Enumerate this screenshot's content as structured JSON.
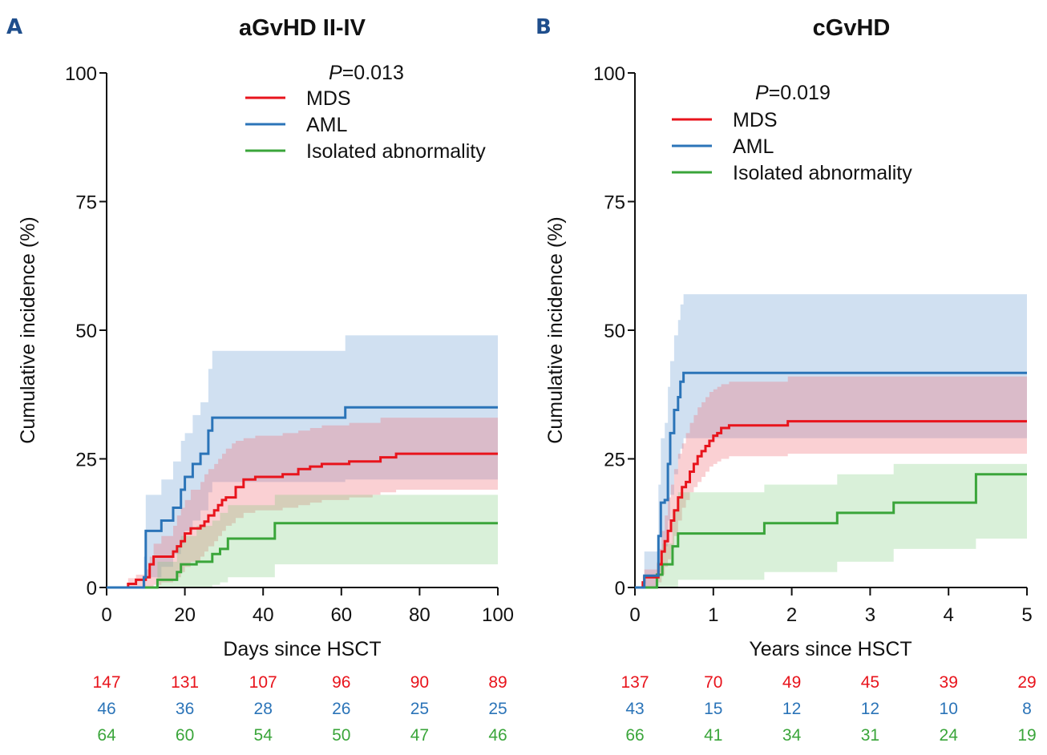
{
  "figure": {
    "colors": {
      "MDS": "#e8141c",
      "AML": "#2b74b8",
      "Isolated abnormality": "#3aa53a",
      "axis": "#111111",
      "panel_letter": "#1f4e8c"
    }
  },
  "chart_data": [
    {
      "type": "line",
      "subtype": "cumulative-incidence-step",
      "panel_letter": "A",
      "title": "aGvHD II-IV",
      "p_value_label": "P",
      "p_value_text": "=0.013",
      "xlabel": "Days since HSCT",
      "ylabel": "Cumulative incidence (%)",
      "xlim": [
        0,
        100
      ],
      "ylim": [
        0,
        100
      ],
      "xticks": [
        0,
        20,
        40,
        60,
        80,
        100
      ],
      "yticks": [
        0,
        25,
        50,
        75,
        100
      ],
      "grid": false,
      "legend_position": "top-center",
      "legend": [
        "MDS",
        "AML",
        "Isolated abnormality"
      ],
      "series": [
        {
          "name": "MDS",
          "x": [
            0,
            5.5,
            7.5,
            10,
            11,
            12,
            14,
            17,
            18,
            19,
            20,
            21.5,
            24,
            25,
            26,
            27.5,
            28.5,
            29.5,
            30.5,
            32,
            33,
            35,
            38,
            45,
            49,
            52,
            55,
            62,
            68,
            70,
            74,
            100
          ],
          "y": [
            0,
            0.7,
            1.5,
            2.0,
            4.5,
            6.0,
            6.0,
            7.0,
            8.0,
            9.0,
            10.5,
            11.5,
            12.0,
            12.8,
            14.0,
            15.0,
            16.0,
            17.0,
            17.5,
            17.5,
            19.5,
            21.0,
            21.5,
            22.0,
            23.0,
            23.5,
            24.0,
            24.5,
            24.5,
            25.3,
            26.0,
            26.0
          ],
          "ci_upper": [
            0,
            1.8,
            2.5,
            3.5,
            6.0,
            8.5,
            10.0,
            12.0,
            14.0,
            15.5,
            17.0,
            19.0,
            20.5,
            22.0,
            23.0,
            24.0,
            25.0,
            26.0,
            27.0,
            28.0,
            28.5,
            29.0,
            29.5,
            30.0,
            30.5,
            31.0,
            31.5,
            32.0,
            32.0,
            33.0,
            33.0,
            33.0
          ],
          "ci_lower": [
            0,
            0,
            0,
            0,
            0,
            0.5,
            1.0,
            1.5,
            2.0,
            3.0,
            4.0,
            5.0,
            6.0,
            7.0,
            8.0,
            9.0,
            10.0,
            11.0,
            12.0,
            12.5,
            13.5,
            14.5,
            15.0,
            15.5,
            16.0,
            16.5,
            17.0,
            17.5,
            18.0,
            18.5,
            19.0,
            19.0
          ]
        },
        {
          "name": "AML",
          "x": [
            0,
            9.5,
            10,
            14,
            17,
            19,
            20,
            22,
            24,
            26,
            27,
            61,
            100
          ],
          "y": [
            0,
            2.0,
            11.0,
            13.0,
            15.5,
            19.0,
            21.5,
            24.0,
            26.0,
            30.5,
            33.0,
            35.0,
            35.0
          ],
          "ci_upper": [
            0,
            6.0,
            18.0,
            21.0,
            24.5,
            28.5,
            30.0,
            33.5,
            36.0,
            42.5,
            46.0,
            49.0,
            49.0
          ],
          "ci_lower": [
            0,
            0,
            2.0,
            4.0,
            6.5,
            8.5,
            11.0,
            13.0,
            15.0,
            18.5,
            20.5,
            21.0,
            21.0
          ]
        },
        {
          "name": "Isolated abnormality",
          "x": [
            0,
            13,
            18,
            19,
            23,
            27,
            29,
            31,
            43,
            100
          ],
          "y": [
            0,
            1.5,
            3.0,
            4.5,
            5.0,
            6.5,
            7.5,
            9.5,
            12.5,
            12.5
          ],
          "ci_upper": [
            0,
            5.0,
            8.0,
            10.0,
            12.0,
            13.0,
            14.5,
            16.0,
            18.0,
            19.0
          ],
          "ci_lower": [
            0,
            0,
            0,
            0,
            0,
            0.5,
            1.0,
            2.0,
            4.5,
            4.5
          ]
        }
      ],
      "risk_table": {
        "MDS": [
          147,
          131,
          107,
          96,
          90,
          89
        ],
        "AML": [
          46,
          36,
          28,
          26,
          25,
          25
        ],
        "Isolated abnormality": [
          64,
          60,
          54,
          50,
          47,
          46
        ]
      }
    },
    {
      "type": "line",
      "subtype": "cumulative-incidence-step",
      "panel_letter": "B",
      "title": "cGvHD",
      "p_value_label": "P",
      "p_value_text": "=0.019",
      "xlabel": "Years since HSCT",
      "ylabel": "Cumulative incidence (%)",
      "xlim": [
        0,
        5
      ],
      "ylim": [
        0,
        100
      ],
      "xticks": [
        0,
        1,
        2,
        3,
        4,
        5
      ],
      "yticks": [
        0,
        25,
        50,
        75,
        100
      ],
      "grid": false,
      "legend_position": "top-center",
      "legend": [
        "MDS",
        "AML",
        "Isolated abnormality"
      ],
      "series": [
        {
          "name": "MDS",
          "x": [
            0,
            0.1,
            0.12,
            0.3,
            0.34,
            0.38,
            0.42,
            0.46,
            0.5,
            0.55,
            0.6,
            0.65,
            0.7,
            0.75,
            0.8,
            0.85,
            0.9,
            0.95,
            1.0,
            1.05,
            1.1,
            1.2,
            1.95,
            5
          ],
          "y": [
            0,
            1.0,
            2.0,
            4.5,
            7.0,
            9.0,
            11.0,
            13.0,
            15.0,
            17.5,
            19.5,
            20.5,
            22.5,
            24.0,
            25.5,
            26.5,
            27.5,
            28.5,
            29.5,
            30.0,
            31.0,
            31.5,
            32.3,
            32.3
          ],
          "ci_upper": [
            0,
            2.5,
            3.5,
            7.5,
            11.0,
            14.0,
            17.5,
            20.0,
            23.0,
            26.0,
            28.0,
            30.0,
            32.0,
            33.5,
            35.0,
            36.0,
            37.0,
            38.0,
            38.5,
            39.0,
            39.5,
            40.0,
            41.0,
            41.0
          ],
          "ci_lower": [
            0,
            0,
            0,
            1.0,
            2.5,
            4.0,
            5.5,
            7.5,
            10.0,
            13.0,
            15.5,
            17.0,
            18.5,
            19.5,
            20.5,
            21.5,
            22.5,
            23.5,
            24.0,
            24.5,
            25.0,
            25.5,
            26.0,
            26.0
          ]
        },
        {
          "name": "AML",
          "x": [
            0,
            0.12,
            0.25,
            0.3,
            0.33,
            0.38,
            0.42,
            0.45,
            0.5,
            0.55,
            0.58,
            0.62,
            5
          ],
          "y": [
            0,
            2.3,
            2.3,
            10.0,
            16.5,
            17.0,
            24.0,
            30.0,
            34.5,
            37.0,
            40.0,
            41.7,
            41.7
          ],
          "ci_upper": [
            0,
            7.0,
            7.0,
            20.0,
            29.0,
            32.0,
            39.0,
            44.0,
            49.0,
            52.0,
            55.0,
            57.0,
            57.0
          ],
          "ci_lower": [
            0,
            0,
            0,
            3.0,
            7.0,
            8.0,
            13.0,
            18.0,
            22.0,
            25.0,
            27.0,
            29.0,
            29.0
          ]
        },
        {
          "name": "Isolated abnormality",
          "x": [
            0,
            0.28,
            0.35,
            0.48,
            0.55,
            1.65,
            2.58,
            3.3,
            4.35,
            5
          ],
          "y": [
            0,
            2.5,
            4.5,
            8.0,
            10.5,
            12.5,
            14.5,
            16.5,
            22.0,
            22.0
          ],
          "ci_upper": [
            0,
            5.0,
            8.5,
            15.0,
            18.5,
            20.0,
            22.0,
            24.0,
            24.0,
            24.0
          ],
          "ci_lower": [
            0,
            0,
            0,
            0,
            1.5,
            3.0,
            5.0,
            7.5,
            9.5,
            10.0
          ]
        }
      ],
      "risk_table": {
        "MDS": [
          137,
          70,
          49,
          45,
          39,
          29
        ],
        "AML": [
          43,
          15,
          12,
          12,
          10,
          8
        ],
        "Isolated abnormality": [
          66,
          41,
          34,
          31,
          24,
          19
        ]
      }
    }
  ]
}
